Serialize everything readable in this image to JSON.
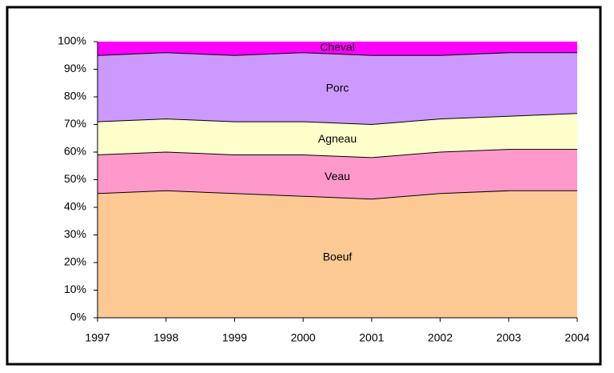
{
  "chart_data": {
    "type": "stacked_area_percent",
    "x": [
      1997,
      1998,
      1999,
      2000,
      2001,
      2002,
      2003,
      2004
    ],
    "xlim": [
      1997,
      2004
    ],
    "xticks": [
      1997,
      1998,
      1999,
      2000,
      2001,
      2002,
      2003,
      2004
    ],
    "ylim": [
      0,
      100
    ],
    "yticks": [
      {
        "value": 0,
        "label": "0%"
      },
      {
        "value": 10,
        "label": "10%"
      },
      {
        "value": 20,
        "label": "20%"
      },
      {
        "value": 30,
        "label": "30%"
      },
      {
        "value": 40,
        "label": "40%"
      },
      {
        "value": 50,
        "label": "50%"
      },
      {
        "value": 60,
        "label": "60%"
      },
      {
        "value": 70,
        "label": "70%"
      },
      {
        "value": 80,
        "label": "80%"
      },
      {
        "value": 90,
        "label": "90%"
      },
      {
        "value": 100,
        "label": "100%"
      }
    ],
    "series": [
      {
        "name": "Boeuf",
        "color": "#fcc994",
        "values": [
          45,
          46,
          45,
          44,
          43,
          45,
          46,
          46
        ]
      },
      {
        "name": "Veau",
        "color": "#ff99cc",
        "values": [
          14,
          14,
          14,
          15,
          15,
          15,
          15,
          15
        ]
      },
      {
        "name": "Agneau",
        "color": "#ffffcc",
        "values": [
          12,
          12,
          12,
          12,
          12,
          12,
          12,
          13
        ]
      },
      {
        "name": "Porc",
        "color": "#cc99ff",
        "values": [
          24,
          24,
          24,
          25,
          25,
          23,
          23,
          22
        ]
      },
      {
        "name": "Cheval",
        "color": "#ff00ff",
        "values": [
          5,
          4,
          5,
          4,
          5,
          5,
          4,
          4
        ]
      }
    ]
  }
}
